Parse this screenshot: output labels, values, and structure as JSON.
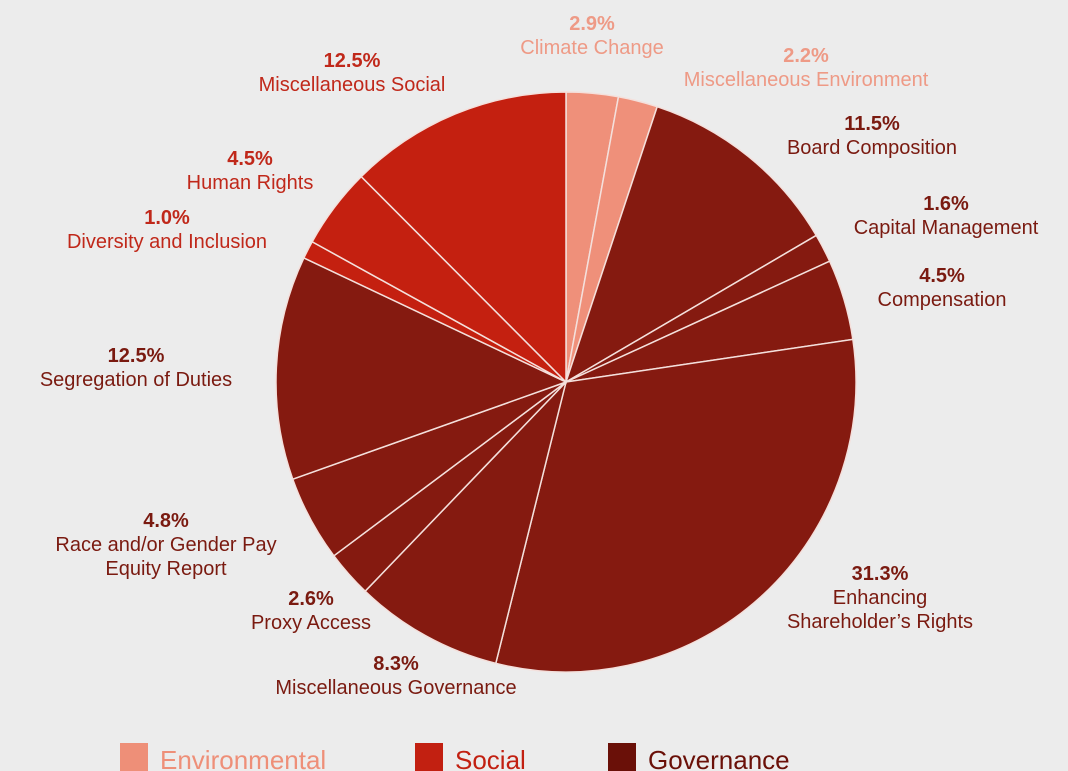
{
  "chart_data": {
    "type": "pie",
    "slices": [
      {
        "label": "Climate Change",
        "display": "2.9%",
        "value": 2.9,
        "group": "Environmental"
      },
      {
        "label": "Miscellaneous Environment",
        "display": "2.2%",
        "value": 2.2,
        "group": "Environmental"
      },
      {
        "label": "Board Composition",
        "display": "11.5%",
        "value": 11.5,
        "group": "Governance"
      },
      {
        "label": "Capital Management",
        "display": "1.6%",
        "value": 1.6,
        "group": "Governance"
      },
      {
        "label": "Compensation",
        "display": "4.5%",
        "value": 4.5,
        "group": "Governance"
      },
      {
        "label": "Enhancing Shareholder’s Rights",
        "display": "31.3%",
        "value": 31.3,
        "group": "Governance"
      },
      {
        "label": "Miscellaneous  Governance",
        "display": "8.3%",
        "value": 8.3,
        "group": "Governance"
      },
      {
        "label": "Proxy Access",
        "display": "2.6%",
        "value": 2.6,
        "group": "Governance"
      },
      {
        "label": "Race and/or Gender Pay Equity Report",
        "display": "4.8%",
        "value": 4.8,
        "group": "Governance"
      },
      {
        "label": "Segregation of Duties",
        "display": "12.5%",
        "value": 12.5,
        "group": "Governance"
      },
      {
        "label": "Diversity and Inclusion",
        "display": "1.0%",
        "value": 1.0,
        "group": "Social"
      },
      {
        "label": "Human Rights",
        "display": "4.5%",
        "value": 4.5,
        "group": "Social"
      },
      {
        "label": "Miscellaneous  Social",
        "display": "12.5%",
        "value": 12.5,
        "group": "Social"
      }
    ],
    "legend": [
      {
        "name": "Environmental",
        "color": "#ee8f78"
      },
      {
        "name": "Social",
        "color": "#c22011"
      },
      {
        "name": "Governance",
        "color": "#6a1008"
      }
    ],
    "legend_position": "bottom",
    "colors": {
      "Environmental": "#ef907a",
      "Social": "#c42010",
      "Governance": "#851a10",
      "label_Environmental": "#ee9a86",
      "label_Social": "#c0281a",
      "label_Governance": "#7a1a10"
    }
  }
}
